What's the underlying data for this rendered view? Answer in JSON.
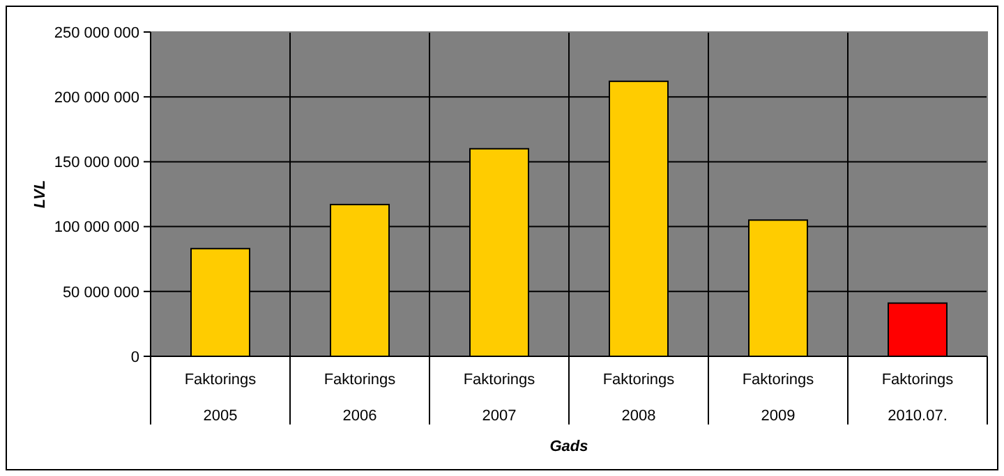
{
  "chart_data": {
    "type": "bar",
    "xlabel": "Gads",
    "ylabel": "LVL",
    "categories": [
      "Faktorings\n2005",
      "Faktorings\n2006",
      "Faktorings\n2007",
      "Faktorings\n2008",
      "Faktorings\n2009",
      "Faktorings\n2010.07."
    ],
    "values": [
      83000000,
      117000000,
      160000000,
      212000000,
      105000000,
      41000000
    ],
    "colors": [
      "#ffcc00",
      "#ffcc00",
      "#ffcc00",
      "#ffcc00",
      "#ffcc00",
      "#ff0000"
    ],
    "ylim": [
      0,
      250000000
    ],
    "yticks": [
      {
        "value": 0,
        "label": "0"
      },
      {
        "value": 50000000,
        "label": "50 000 000"
      },
      {
        "value": 100000000,
        "label": "100 000 000"
      },
      {
        "value": 150000000,
        "label": "150 000 000"
      },
      {
        "value": 200000000,
        "label": "200 000 000"
      },
      {
        "value": 250000000,
        "label": "250 000 000"
      }
    ],
    "grid": true
  }
}
